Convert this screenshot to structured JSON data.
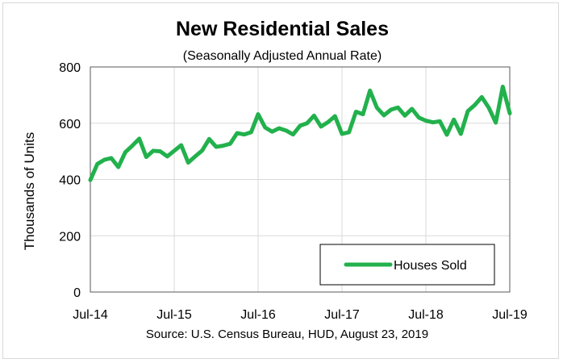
{
  "chart_data": {
    "type": "line",
    "title": "New Residential Sales",
    "subtitle": "(Seasonally Adjusted Annual Rate)",
    "ylabel": "Thousands of Units",
    "xlabel": "",
    "source": "Source:  U.S. Census Bureau, HUD, August 23, 2019",
    "ylim": [
      0,
      800
    ],
    "yticks": [
      0,
      200,
      400,
      600,
      800
    ],
    "xtick_labels": [
      "Jul-14",
      "Jul-15",
      "Jul-16",
      "Jul-17",
      "Jul-18",
      "Jul-19"
    ],
    "grid": true,
    "legend_position": "bottom-right",
    "colors": {
      "series": "#22b14c",
      "grid": "#d9d9d9",
      "axis": "#595959"
    },
    "x": [
      "Jul-14",
      "Aug-14",
      "Sep-14",
      "Oct-14",
      "Nov-14",
      "Dec-14",
      "Jan-15",
      "Feb-15",
      "Mar-15",
      "Apr-15",
      "May-15",
      "Jun-15",
      "Jul-15",
      "Aug-15",
      "Sep-15",
      "Oct-15",
      "Nov-15",
      "Dec-15",
      "Jan-16",
      "Feb-16",
      "Mar-16",
      "Apr-16",
      "May-16",
      "Jun-16",
      "Jul-16",
      "Aug-16",
      "Sep-16",
      "Oct-16",
      "Nov-16",
      "Dec-16",
      "Jan-17",
      "Feb-17",
      "Mar-17",
      "Apr-17",
      "May-17",
      "Jun-17",
      "Jul-17",
      "Aug-17",
      "Sep-17",
      "Oct-17",
      "Nov-17",
      "Dec-17",
      "Jan-18",
      "Feb-18",
      "Mar-18",
      "Apr-18",
      "May-18",
      "Jun-18",
      "Jul-18",
      "Aug-18",
      "Sep-18",
      "Oct-18",
      "Nov-18",
      "Dec-18",
      "Jan-19",
      "Feb-19",
      "Mar-19",
      "Apr-19",
      "May-19",
      "Jun-19",
      "Jul-19"
    ],
    "series": [
      {
        "name": "Houses Sold",
        "values": [
          398,
          455,
          470,
          476,
          444,
          497,
          520,
          545,
          480,
          502,
          500,
          482,
          502,
          522,
          460,
          482,
          503,
          544,
          516,
          520,
          527,
          565,
          560,
          568,
          632,
          585,
          570,
          582,
          574,
          560,
          591,
          600,
          627,
          588,
          604,
          625,
          562,
          568,
          641,
          632,
          716,
          655,
          628,
          648,
          656,
          627,
          651,
          620,
          609,
          603,
          607,
          559,
          613,
          562,
          643,
          665,
          693,
          655,
          602,
          730,
          635
        ]
      }
    ]
  }
}
